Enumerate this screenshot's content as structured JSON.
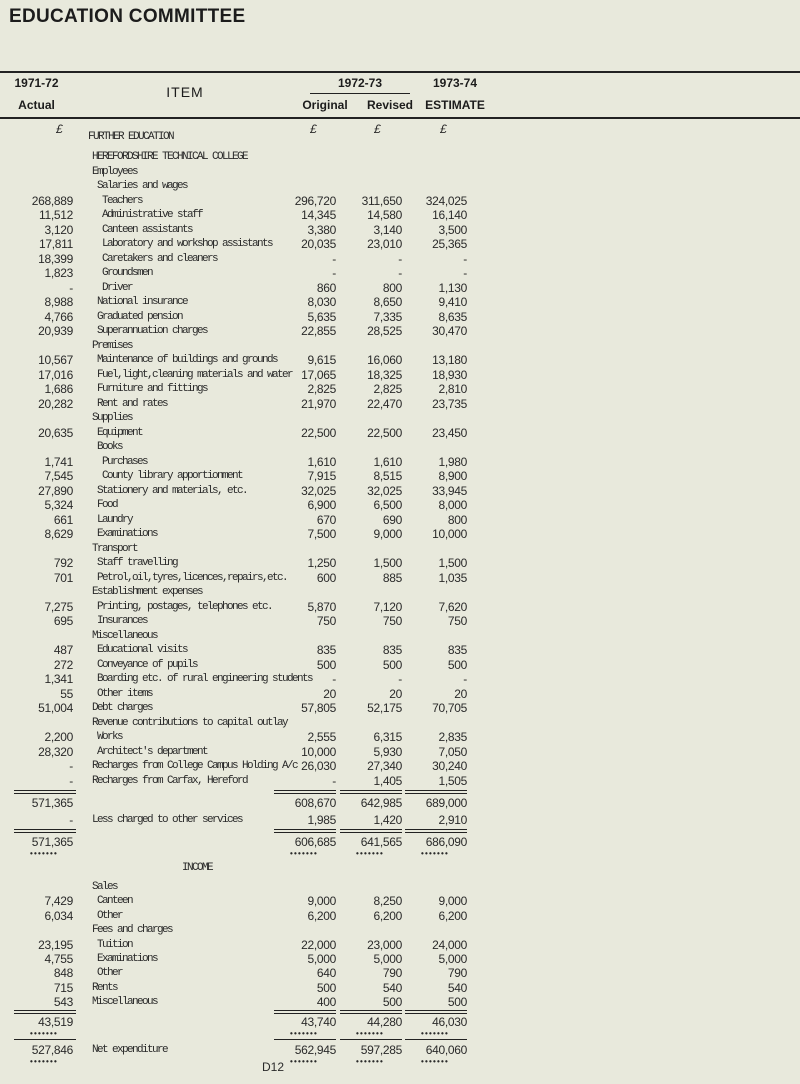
{
  "title": "EDUCATION COMMITTEE",
  "header": {
    "col_actual_year": "1971-72",
    "col_actual_label": "Actual",
    "col_item": "ITEM",
    "col_group_year": "1972-73",
    "col_original": "Original",
    "col_revised": "Revised",
    "col_estimate_year": "1973-74",
    "col_estimate_label": "ESTIMATE",
    "currency": "£"
  },
  "section_title": "FURTHER EDUCATION",
  "rows": [
    {
      "level": 0,
      "text": "HEREFORDSHIRE TECHNICAL COLLEGE",
      "v": [
        "",
        "",
        "",
        ""
      ]
    },
    {
      "level": 1,
      "text": "Employees",
      "v": [
        "",
        "",
        "",
        ""
      ]
    },
    {
      "level": 2,
      "text": "Salaries and wages",
      "v": [
        "",
        "",
        "",
        ""
      ]
    },
    {
      "level": 3,
      "text": "Teachers",
      "v": [
        "268,889",
        "296,720",
        "311,650",
        "324,025"
      ]
    },
    {
      "level": 3,
      "text": "Administrative staff",
      "v": [
        "11,512",
        "14,345",
        "14,580",
        "16,140"
      ]
    },
    {
      "level": 3,
      "text": "Canteen assistants",
      "v": [
        "3,120",
        "3,380",
        "3,140",
        "3,500"
      ]
    },
    {
      "level": 3,
      "text": "Laboratory and workshop assistants",
      "v": [
        "17,811",
        "20,035",
        "23,010",
        "25,365"
      ]
    },
    {
      "level": 3,
      "text": "Caretakers and cleaners",
      "v": [
        "18,399",
        "-",
        "-",
        "-"
      ]
    },
    {
      "level": 3,
      "text": "Groundsmen",
      "v": [
        "1,823",
        "-",
        "-",
        "-"
      ]
    },
    {
      "level": 3,
      "text": "Driver",
      "v": [
        "-",
        "860",
        "800",
        "1,130"
      ]
    },
    {
      "level": 2,
      "text": "National insurance",
      "v": [
        "8,988",
        "8,030",
        "8,650",
        "9,410"
      ]
    },
    {
      "level": 2,
      "text": "Graduated pension",
      "v": [
        "4,766",
        "5,635",
        "7,335",
        "8,635"
      ]
    },
    {
      "level": 2,
      "text": "Superannuation charges",
      "v": [
        "20,939",
        "22,855",
        "28,525",
        "30,470"
      ]
    },
    {
      "level": 1,
      "text": "Premises",
      "v": [
        "",
        "",
        "",
        ""
      ]
    },
    {
      "level": 2,
      "text": "Maintenance of buildings and grounds",
      "v": [
        "10,567",
        "9,615",
        "16,060",
        "13,180"
      ]
    },
    {
      "level": 2,
      "text": "Fuel,light,cleaning materials and water",
      "v": [
        "17,016",
        "17,065",
        "18,325",
        "18,930"
      ]
    },
    {
      "level": 2,
      "text": "Furniture and fittings",
      "v": [
        "1,686",
        "2,825",
        "2,825",
        "2,810"
      ]
    },
    {
      "level": 2,
      "text": "Rent and rates",
      "v": [
        "20,282",
        "21,970",
        "22,470",
        "23,735"
      ]
    },
    {
      "level": 1,
      "text": "Supplies",
      "v": [
        "",
        "",
        "",
        ""
      ]
    },
    {
      "level": 2,
      "text": "Equipment",
      "v": [
        "20,635",
        "22,500",
        "22,500",
        "23,450"
      ]
    },
    {
      "level": 2,
      "text": "Books",
      "v": [
        "",
        "",
        "",
        ""
      ]
    },
    {
      "level": 3,
      "text": "Purchases",
      "v": [
        "1,741",
        "1,610",
        "1,610",
        "1,980"
      ]
    },
    {
      "level": 3,
      "text": "County library apportionment",
      "v": [
        "7,545",
        "7,915",
        "8,515",
        "8,900"
      ]
    },
    {
      "level": 2,
      "text": "Stationery and materials, etc.",
      "v": [
        "27,890",
        "32,025",
        "32,025",
        "33,945"
      ]
    },
    {
      "level": 2,
      "text": "Food",
      "v": [
        "5,324",
        "6,900",
        "6,500",
        "8,000"
      ]
    },
    {
      "level": 2,
      "text": "Laundry",
      "v": [
        "661",
        "670",
        "690",
        "800"
      ]
    },
    {
      "level": 2,
      "text": "Examinations",
      "v": [
        "8,629",
        "7,500",
        "9,000",
        "10,000"
      ]
    },
    {
      "level": 1,
      "text": "Transport",
      "v": [
        "",
        "",
        "",
        ""
      ]
    },
    {
      "level": 2,
      "text": "Staff travelling",
      "v": [
        "792",
        "1,250",
        "1,500",
        "1,500"
      ]
    },
    {
      "level": 2,
      "text": "Petrol,oil,tyres,licences,repairs,etc.",
      "v": [
        "701",
        "600",
        "885",
        "1,035"
      ]
    },
    {
      "level": 1,
      "text": "Establishment expenses",
      "v": [
        "",
        "",
        "",
        ""
      ]
    },
    {
      "level": 2,
      "text": "Printing, postages, telephones etc.",
      "v": [
        "7,275",
        "5,870",
        "7,120",
        "7,620"
      ]
    },
    {
      "level": 2,
      "text": "Insurances",
      "v": [
        "695",
        "750",
        "750",
        "750"
      ]
    },
    {
      "level": 1,
      "text": "Miscellaneous",
      "v": [
        "",
        "",
        "",
        ""
      ]
    },
    {
      "level": 2,
      "text": "Educational visits",
      "v": [
        "487",
        "835",
        "835",
        "835"
      ]
    },
    {
      "level": 2,
      "text": "Conveyance of pupils",
      "v": [
        "272",
        "500",
        "500",
        "500"
      ]
    },
    {
      "level": 2,
      "text": "Boarding etc. of rural engineering students",
      "v": [
        "1,341",
        "-",
        "-",
        "-"
      ]
    },
    {
      "level": 2,
      "text": "Other items",
      "v": [
        "55",
        "20",
        "20",
        "20"
      ]
    },
    {
      "level": 1,
      "text": "Debt charges",
      "v": [
        "51,004",
        "57,805",
        "52,175",
        "70,705"
      ]
    },
    {
      "level": 1,
      "text": "Revenue contributions to capital outlay",
      "v": [
        "",
        "",
        "",
        ""
      ]
    },
    {
      "level": 2,
      "text": "Works",
      "v": [
        "2,200",
        "2,555",
        "6,315",
        "2,835"
      ]
    },
    {
      "level": 2,
      "text": "Architect's department",
      "v": [
        "28,320",
        "10,000",
        "5,930",
        "7,050"
      ]
    },
    {
      "level": 1,
      "text": "Recharges from College Campus Holding A/c",
      "v": [
        "-",
        "26,030",
        "27,340",
        "30,240"
      ]
    },
    {
      "level": 1,
      "text": "Recharges from Carfax, Hereford",
      "v": [
        "-",
        "-",
        "1,405",
        "1,505"
      ]
    }
  ],
  "subtotal": {
    "text": "",
    "v": [
      "571,365",
      "608,670",
      "642,985",
      "689,000"
    ]
  },
  "less": {
    "text": "Less charged to other services",
    "v": [
      "-",
      "1,985",
      "1,420",
      "2,910"
    ]
  },
  "gross_total": {
    "text": "",
    "v": [
      "571,365",
      "606,685",
      "641,565",
      "686,090"
    ]
  },
  "income_title": "INCOME",
  "income_rows": [
    {
      "level": 1,
      "text": "Sales",
      "v": [
        "",
        "",
        "",
        ""
      ]
    },
    {
      "level": 2,
      "text": "Canteen",
      "v": [
        "7,429",
        "9,000",
        "8,250",
        "9,000"
      ]
    },
    {
      "level": 2,
      "text": "Other",
      "v": [
        "6,034",
        "6,200",
        "6,200",
        "6,200"
      ]
    },
    {
      "level": 1,
      "text": "Fees and charges",
      "v": [
        "",
        "",
        "",
        ""
      ]
    },
    {
      "level": 2,
      "text": "Tuition",
      "v": [
        "23,195",
        "22,000",
        "23,000",
        "24,000"
      ]
    },
    {
      "level": 2,
      "text": "Examinations",
      "v": [
        "4,755",
        "5,000",
        "5,000",
        "5,000"
      ]
    },
    {
      "level": 2,
      "text": "Other",
      "v": [
        "848",
        "640",
        "790",
        "790"
      ]
    },
    {
      "level": 1,
      "text": "Rents",
      "v": [
        "715",
        "500",
        "540",
        "540"
      ]
    },
    {
      "level": 1,
      "text": "Miscellaneous",
      "v": [
        "543",
        "400",
        "500",
        "500"
      ]
    }
  ],
  "income_total": {
    "text": "",
    "v": [
      "43,519",
      "43,740",
      "44,280",
      "46,030"
    ]
  },
  "net": {
    "text": "Net expenditure",
    "v": [
      "527,846",
      "562,945",
      "597,285",
      "640,060"
    ]
  },
  "page_number": "D12",
  "dots": "•••••••"
}
